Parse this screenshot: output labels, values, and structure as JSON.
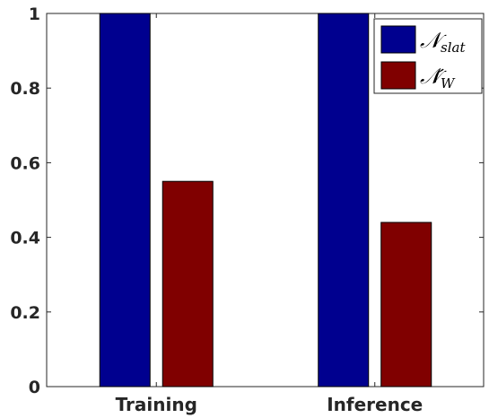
{
  "chart_data": {
    "type": "bar",
    "categories": [
      "Training",
      "Inference"
    ],
    "series": [
      {
        "name": "𝒩slat",
        "name_main": "𝒩",
        "name_sub": "slat",
        "color": "#00008f",
        "values": [
          1.0,
          1.0
        ]
      },
      {
        "name": "𝒩́W",
        "name_main": "𝒩́",
        "name_sub": "W",
        "color": "#800000",
        "values": [
          0.55,
          0.44
        ]
      }
    ],
    "ylim": [
      0,
      1
    ],
    "yticks": [
      0,
      0.2,
      0.4,
      0.6,
      0.8,
      1
    ],
    "ytick_labels": [
      "0",
      "0.2",
      "0.4",
      "0.6",
      "0.8",
      "1"
    ],
    "xlabel": "",
    "ylabel": "",
    "title": "",
    "legend_position": "top-right",
    "grid": false
  }
}
